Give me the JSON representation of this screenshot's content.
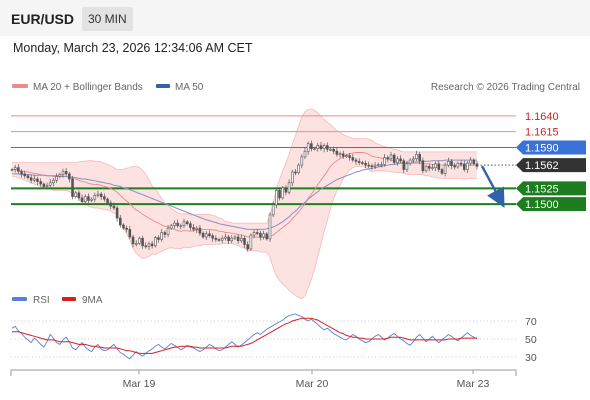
{
  "header": {
    "symbol": "EUR/USD",
    "timeframe": "30 MIN",
    "datetime": "Monday, March 23, 2026 12:34:06 AM CET"
  },
  "colors": {
    "bollinger": "#f08a8a",
    "ma50": "#3a5ea8",
    "resistance": "#f08a8a",
    "pivot": "#3a72d6",
    "support": "#1e7d1e",
    "current": "#333333",
    "rsi": "#5a7fd6",
    "rsi_ma": "#d62020",
    "arrow": "#2f62a8",
    "candle_up": "#444444",
    "candle_down": "#666666"
  },
  "chart_data": [
    {
      "type": "candlestick",
      "legend": [
        {
          "name": "MA 20 + Bollinger Bands",
          "color": "#f08a8a"
        },
        {
          "name": "MA 50",
          "color": "#3a5ea8"
        }
      ],
      "attribution": "Research © 2026 Trading Central",
      "x_ticks": [
        "Mar 19",
        "Mar 20",
        "Mar 23"
      ],
      "y_range": [
        1.1375,
        1.167
      ],
      "closes": [
        1.1555,
        1.1558,
        1.1552,
        1.1548,
        1.1545,
        1.1542,
        1.1538,
        1.154,
        1.1536,
        1.1532,
        1.1528,
        1.153,
        1.1534,
        1.1538,
        1.1544,
        1.1547,
        1.1552,
        1.1548,
        1.154,
        1.1512,
        1.1518,
        1.151,
        1.1504,
        1.1512,
        1.1506,
        1.1508,
        1.1514,
        1.1516,
        1.1512,
        1.1508,
        1.1502,
        1.1497,
        1.1494,
        1.1478,
        1.1467,
        1.1462,
        1.146,
        1.1448,
        1.1437,
        1.1438,
        1.1446,
        1.1434,
        1.1433,
        1.1437,
        1.1434,
        1.1447,
        1.1444,
        1.1455,
        1.1452,
        1.1462,
        1.1466,
        1.147,
        1.1466,
        1.1466,
        1.1472,
        1.1469,
        1.1463,
        1.146,
        1.1462,
        1.1454,
        1.1448,
        1.1453,
        1.145,
        1.1446,
        1.1444,
        1.1443,
        1.1446,
        1.1448,
        1.1442,
        1.1446,
        1.1448,
        1.1442,
        1.1446,
        1.1436,
        1.1429,
        1.1451,
        1.1455,
        1.1454,
        1.1448,
        1.1453,
        1.1445,
        1.1483,
        1.1499,
        1.1522,
        1.151,
        1.1526,
        1.1519,
        1.1534,
        1.1551,
        1.155,
        1.1562,
        1.1575,
        1.1584,
        1.1596,
        1.1588,
        1.1588,
        1.1593,
        1.1588,
        1.1593,
        1.1587,
        1.1587,
        1.1584,
        1.1579,
        1.158,
        1.1576,
        1.1577,
        1.1574,
        1.157,
        1.1568,
        1.1566,
        1.1565,
        1.1562,
        1.1561,
        1.156,
        1.1562,
        1.1563,
        1.1563,
        1.1574,
        1.1572,
        1.1578,
        1.1566,
        1.1572,
        1.1569,
        1.1555,
        1.1564,
        1.157,
        1.1572,
        1.1579,
        1.1569,
        1.1553,
        1.156,
        1.1557,
        1.1558,
        1.1564,
        1.1555,
        1.1549,
        1.1562,
        1.1568,
        1.1561,
        1.1559,
        1.1565,
        1.1564,
        1.1555,
        1.1565,
        1.157,
        1.1564,
        1.156
      ],
      "ma20": [
        1.1555,
        1.1555,
        1.1554,
        1.1553,
        1.1552,
        1.1551,
        1.155,
        1.1549,
        1.1548,
        1.1547,
        1.1546,
        1.1545,
        1.1545,
        1.1544,
        1.1544,
        1.1544,
        1.1544,
        1.1544,
        1.1543,
        1.1541,
        1.154,
        1.1538,
        1.1536,
        1.1535,
        1.1533,
        1.1532,
        1.1531,
        1.1531,
        1.153,
        1.1528,
        1.1527,
        1.1525,
        1.1522,
        1.1519,
        1.1514,
        1.1509,
        1.1505,
        1.1501,
        1.1495,
        1.1491,
        1.1488,
        1.1484,
        1.1481,
        1.1478,
        1.1475,
        1.1472,
        1.147,
        1.1467,
        1.1465,
        1.1464,
        1.1462,
        1.146,
        1.1458,
        1.1457,
        1.1458,
        1.1458,
        1.1457,
        1.1458,
        1.1459,
        1.1459,
        1.146,
        1.146,
        1.146,
        1.1459,
        1.1459,
        1.1457,
        1.1457,
        1.1455,
        1.1455,
        1.1454,
        1.1453,
        1.1452,
        1.1451,
        1.145,
        1.1448,
        1.1448,
        1.1448,
        1.1448,
        1.1447,
        1.1447,
        1.1447,
        1.1449,
        1.1451,
        1.1455,
        1.1459,
        1.1463,
        1.1467,
        1.1471,
        1.1477,
        1.1482,
        1.1488,
        1.1494,
        1.1501,
        1.1509,
        1.1516,
        1.1523,
        1.1531,
        1.1538,
        1.1545,
        1.1552,
        1.156,
        1.1565,
        1.1569,
        1.1572,
        1.1575,
        1.1578,
        1.158,
        1.1581,
        1.1582,
        1.1582,
        1.1582,
        1.1581,
        1.1579,
        1.1576,
        1.1575,
        1.1574,
        1.1573,
        1.1572,
        1.1571,
        1.157,
        1.1569,
        1.1568,
        1.1567,
        1.1566,
        1.1565,
        1.1565,
        1.1565,
        1.1565,
        1.1565,
        1.1565,
        1.1564,
        1.1564,
        1.1563,
        1.1563,
        1.1562,
        1.1562,
        1.1562,
        1.1562,
        1.1562,
        1.1562,
        1.1562,
        1.1562,
        1.1561,
        1.1562,
        1.1562,
        1.1562,
        1.1562
      ],
      "bb_upper": [
        1.1566,
        1.1566,
        1.1566,
        1.1566,
        1.1566,
        1.1566,
        1.1566,
        1.1566,
        1.1566,
        1.1566,
        1.1566,
        1.1566,
        1.1566,
        1.1566,
        1.1566,
        1.1566,
        1.1566,
        1.1566,
        1.1566,
        1.1566,
        1.1566,
        1.1567,
        1.1568,
        1.1568,
        1.1569,
        1.1569,
        1.1568,
        1.1568,
        1.1567,
        1.1565,
        1.1563,
        1.1561,
        1.1558,
        1.1555,
        1.1555,
        1.1555,
        1.1557,
        1.1558,
        1.156,
        1.156,
        1.1558,
        1.1554,
        1.1547,
        1.1539,
        1.1529,
        1.1524,
        1.1517,
        1.1509,
        1.1502,
        1.1498,
        1.1493,
        1.149,
        1.1486,
        1.1485,
        1.1484,
        1.1485,
        1.1483,
        1.1483,
        1.1484,
        1.1484,
        1.1484,
        1.1484,
        1.1484,
        1.1482,
        1.1481,
        1.1478,
        1.1477,
        1.1472,
        1.1472,
        1.147,
        1.147,
        1.147,
        1.147,
        1.147,
        1.147,
        1.147,
        1.147,
        1.147,
        1.147,
        1.147,
        1.147,
        1.1482,
        1.1503,
        1.1523,
        1.1539,
        1.1553,
        1.1565,
        1.1579,
        1.1595,
        1.1609,
        1.1624,
        1.1638,
        1.1647,
        1.165,
        1.1651,
        1.1649,
        1.1645,
        1.164,
        1.1634,
        1.163,
        1.1626,
        1.1621,
        1.1617,
        1.1614,
        1.161,
        1.1608,
        1.1606,
        1.1604,
        1.1604,
        1.1604,
        1.1604,
        1.1604,
        1.1603,
        1.1601,
        1.1597,
        1.1595,
        1.1593,
        1.1591,
        1.159,
        1.1589,
        1.1587,
        1.1586,
        1.1584,
        1.1583,
        1.1583,
        1.1583,
        1.1583,
        1.1583,
        1.1583,
        1.1583,
        1.1583,
        1.1583,
        1.1583,
        1.1583,
        1.1583,
        1.1583,
        1.1583,
        1.1583,
        1.1583,
        1.1583,
        1.1583,
        1.1583,
        1.1583,
        1.1583,
        1.1583,
        1.1583,
        1.1583
      ],
      "bb_lower": [
        1.1544,
        1.1544,
        1.1542,
        1.154,
        1.1538,
        1.1536,
        1.1534,
        1.1532,
        1.153,
        1.1528,
        1.1526,
        1.1524,
        1.1524,
        1.1522,
        1.1522,
        1.1522,
        1.1522,
        1.1522,
        1.152,
        1.1516,
        1.1514,
        1.1509,
        1.1504,
        1.1502,
        1.1497,
        1.1495,
        1.1494,
        1.1494,
        1.1493,
        1.1491,
        1.1491,
        1.1489,
        1.1486,
        1.1483,
        1.1473,
        1.1463,
        1.1453,
        1.1444,
        1.143,
        1.1422,
        1.1418,
        1.1414,
        1.1415,
        1.1417,
        1.1421,
        1.142,
        1.1423,
        1.1425,
        1.1428,
        1.143,
        1.1431,
        1.143,
        1.143,
        1.1429,
        1.1432,
        1.1431,
        1.1431,
        1.1433,
        1.1434,
        1.1434,
        1.1436,
        1.1436,
        1.1436,
        1.1436,
        1.1437,
        1.1436,
        1.1437,
        1.1438,
        1.1438,
        1.1438,
        1.1436,
        1.1434,
        1.1432,
        1.143,
        1.1426,
        1.1426,
        1.1426,
        1.1426,
        1.1424,
        1.1424,
        1.1424,
        1.1416,
        1.1399,
        1.1387,
        1.1379,
        1.1373,
        1.1369,
        1.1363,
        1.1359,
        1.1355,
        1.1352,
        1.135,
        1.1355,
        1.1368,
        1.1381,
        1.1397,
        1.1417,
        1.1436,
        1.1456,
        1.1474,
        1.1494,
        1.1509,
        1.1521,
        1.153,
        1.154,
        1.1548,
        1.1554,
        1.1558,
        1.156,
        1.156,
        1.156,
        1.1558,
        1.1555,
        1.1551,
        1.1553,
        1.1553,
        1.1553,
        1.1553,
        1.1552,
        1.1551,
        1.1551,
        1.155,
        1.155,
        1.1549,
        1.1547,
        1.1547,
        1.1547,
        1.1547,
        1.1547,
        1.1547,
        1.1545,
        1.1545,
        1.1543,
        1.1543,
        1.1541,
        1.1541,
        1.1541,
        1.1541,
        1.1541,
        1.1541,
        1.1541,
        1.1541,
        1.1539,
        1.1541,
        1.1541,
        1.1541,
        1.1541
      ],
      "ma50": [
        1.1548,
        1.1548,
        1.1548,
        1.1547,
        1.1547,
        1.1547,
        1.1547,
        1.1546,
        1.1546,
        1.1546,
        1.1546,
        1.1545,
        1.1545,
        1.1545,
        1.1545,
        1.1545,
        1.1544,
        1.1544,
        1.1543,
        1.1543,
        1.1542,
        1.1541,
        1.154,
        1.154,
        1.1539,
        1.1538,
        1.1537,
        1.1536,
        1.1535,
        1.1534,
        1.1533,
        1.1532,
        1.153,
        1.1529,
        1.1528,
        1.1526,
        1.1525,
        1.1523,
        1.1521,
        1.1519,
        1.1517,
        1.1515,
        1.1513,
        1.1511,
        1.1509,
        1.1507,
        1.1505,
        1.1503,
        1.1501,
        1.1499,
        1.1497,
        1.1495,
        1.1493,
        1.1491,
        1.1489,
        1.1487,
        1.1485,
        1.1483,
        1.1481,
        1.1479,
        1.1477,
        1.1475,
        1.1474,
        1.1472,
        1.1471,
        1.1469,
        1.1468,
        1.1467,
        1.1466,
        1.1465,
        1.1464,
        1.1463,
        1.1462,
        1.1461,
        1.146,
        1.146,
        1.146,
        1.146,
        1.146,
        1.146,
        1.1461,
        1.1462,
        1.1464,
        1.1466,
        1.1469,
        1.1472,
        1.1476,
        1.148,
        1.1485,
        1.1489,
        1.1494,
        1.1499,
        1.1503,
        1.1508,
        1.1512,
        1.1516,
        1.152,
        1.1524,
        1.1527,
        1.153,
        1.1533,
        1.1536,
        1.1539,
        1.1541,
        1.1543,
        1.1545,
        1.1547,
        1.1549,
        1.1551,
        1.1552,
        1.1554,
        1.1555,
        1.1556,
        1.1557,
        1.1558,
        1.1559,
        1.156,
        1.1561,
        1.1562,
        1.1563,
        1.1563,
        1.1564,
        1.1565,
        1.1565,
        1.1566,
        1.1566,
        1.1567,
        1.1567,
        1.1567,
        1.1568,
        1.1568,
        1.1568,
        1.1569,
        1.1569,
        1.1569,
        1.1569,
        1.157,
        1.157,
        1.157,
        1.157,
        1.157,
        1.157,
        1.157,
        1.157,
        1.157,
        1.157,
        1.157
      ],
      "levels": [
        {
          "label": "1.1640",
          "value": 1.164,
          "kind": "resistance"
        },
        {
          "label": "1.1615",
          "value": 1.1615,
          "kind": "resistance"
        },
        {
          "label": "1.1590",
          "value": 1.159,
          "kind": "pivot"
        },
        {
          "label": "1.1562",
          "value": 1.1562,
          "kind": "current"
        },
        {
          "label": "1.1525",
          "value": 1.1525,
          "kind": "support"
        },
        {
          "label": "1.1500",
          "value": 1.15,
          "kind": "support"
        }
      ],
      "arrow": {
        "from": 1.1562,
        "to": 1.1525,
        "direction": "down"
      }
    },
    {
      "type": "line",
      "legend": [
        {
          "name": "RSI",
          "color": "#5a7fd6"
        },
        {
          "name": "9MA",
          "color": "#d62020"
        }
      ],
      "y_range": [
        20,
        80
      ],
      "y_ticks": [
        {
          "value": 70,
          "label": "70"
        },
        {
          "value": 50,
          "label": "50"
        },
        {
          "value": 30,
          "label": "30"
        }
      ],
      "rsi": [
        62,
        64,
        59,
        56,
        52,
        49,
        46,
        51,
        48,
        44,
        41,
        47,
        55,
        51,
        46,
        44,
        49,
        52,
        47,
        40,
        38,
        42,
        46,
        41,
        38,
        36,
        41,
        44,
        39,
        37,
        38,
        41,
        44,
        39,
        35,
        33,
        30,
        28,
        32,
        36,
        33,
        31,
        34,
        37,
        39,
        42,
        44,
        41,
        39,
        42,
        45,
        43,
        41,
        38,
        40,
        43,
        41,
        40,
        38,
        36,
        38,
        41,
        44,
        42,
        39,
        37,
        38,
        41,
        44,
        47,
        44,
        41,
        43,
        46,
        49,
        52,
        55,
        57,
        55,
        58,
        61,
        63,
        65,
        67,
        69,
        71,
        74,
        76,
        77,
        78,
        76,
        75,
        72,
        70,
        72,
        69,
        66,
        63,
        60,
        62,
        59,
        56,
        54,
        52,
        50,
        49,
        52,
        55,
        53,
        50,
        48,
        46,
        47,
        50,
        53,
        55,
        52,
        49,
        51,
        54,
        56,
        53,
        50,
        48,
        45,
        43,
        47,
        52,
        55,
        51,
        47,
        50,
        53,
        49,
        46,
        49,
        52,
        55,
        53,
        50,
        48,
        51,
        54,
        57,
        54,
        52,
        50
      ],
      "rsi_ma": [
        58,
        58,
        58,
        57,
        56,
        55,
        54,
        53,
        52,
        51,
        50,
        49,
        49,
        49,
        48,
        47,
        47,
        47,
        47,
        46,
        45,
        44,
        44,
        44,
        43,
        42,
        42,
        41,
        41,
        40,
        40,
        40,
        40,
        40,
        39,
        38,
        37,
        37,
        36,
        35,
        34,
        34,
        34,
        34,
        34,
        35,
        36,
        37,
        38,
        39,
        40,
        41,
        41,
        42,
        42,
        42,
        42,
        41,
        41,
        40,
        40,
        40,
        40,
        40,
        40,
        40,
        40,
        40,
        41,
        42,
        42,
        42,
        42,
        43,
        44,
        45,
        47,
        49,
        51,
        53,
        55,
        57,
        59,
        61,
        63,
        65,
        67,
        68,
        70,
        71,
        72,
        73,
        73,
        73,
        73,
        72,
        71,
        69,
        67,
        65,
        63,
        61,
        59,
        57,
        56,
        54,
        53,
        52,
        52,
        51,
        51,
        50,
        50,
        50,
        50,
        50,
        50,
        50,
        51,
        52,
        52,
        52,
        52,
        51,
        50,
        49,
        49,
        49,
        49,
        49,
        49,
        49,
        49,
        49,
        49,
        49,
        49,
        50,
        50,
        50,
        50,
        51,
        51,
        51,
        51,
        51,
        51
      ]
    }
  ]
}
